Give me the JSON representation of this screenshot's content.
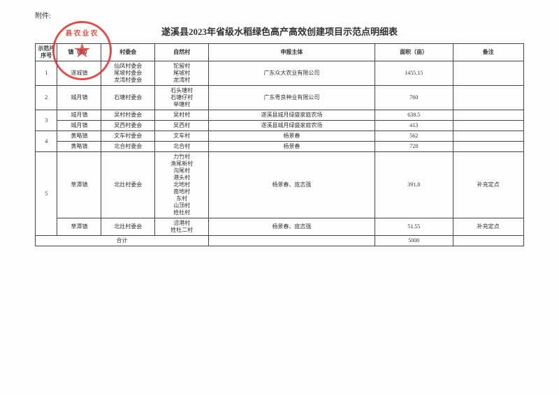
{
  "attachment_label": "附件:",
  "title": "遂溪县2023年省级水稻绿色高产高效创建项目示范点明细表",
  "stamp_text": "县农业农",
  "headers": {
    "index": "示范片\n序号",
    "town": "镇（街）",
    "vcommittee": "村委会",
    "nvillage": "自然村",
    "entity": "申报主体",
    "area": "面积（亩）",
    "remark": "备注"
  },
  "rows": [
    {
      "idx": "1",
      "rowspan_idx": 1,
      "town": "遂城镇",
      "vc": "仙凤村委会\n尾坡村委会\n龙湾村委会",
      "nv": "铊留村\n尾坡村\n龙湾村",
      "entity": "广东众大农业有限公司",
      "area": "1455.15",
      "remark": ""
    },
    {
      "idx": "2",
      "rowspan_idx": 1,
      "town": "城月镇",
      "vc": "石塘村委会",
      "nv": "石头塘村\n石塘仔村\n举塘村",
      "entity": "广东粤良种业有限公司",
      "area": "760",
      "remark": ""
    },
    {
      "idx": "3",
      "rowspan_idx": 2,
      "town": "城月镇",
      "vc": "吴村村委会",
      "nv": "吴村村",
      "entity": "遂溪县城月绿盛家庭农场",
      "area": "638.5",
      "remark": ""
    },
    {
      "idx": "",
      "rowspan_idx": 0,
      "town": "城月镇",
      "vc": "吴西村委会",
      "nv": "吴西村",
      "entity": "遂溪县城月绿盛家庭农场",
      "area": "413",
      "remark": ""
    },
    {
      "idx": "4",
      "rowspan_idx": 2,
      "town": "黄略镇",
      "vc": "文车村委会",
      "nv": "文车村",
      "entity": "杨景春",
      "area": "562",
      "remark": ""
    },
    {
      "idx": "",
      "rowspan_idx": 0,
      "town": "黄略镇",
      "vc": "北合村委会",
      "nv": "北合村",
      "entity": "杨景春",
      "area": "728",
      "remark": ""
    },
    {
      "idx": "5",
      "rowspan_idx": 2,
      "town": "草潭镇",
      "vc": "北灶村委会",
      "nv": "力竹村\n渔尾新村\n沟尾村\n港头村\n北地村\n南地村\n东村\n山顶村\n姓杜村",
      "entity": "杨景春、庞志强",
      "area": "391.8",
      "remark": "补充定点"
    },
    {
      "idx": "",
      "rowspan_idx": 0,
      "town": "草潭镇",
      "vc": "北灶村委会",
      "nv": "涪港村\n姓杜二村",
      "entity": "杨景春、庞志强",
      "area": "51.55",
      "remark": "补充定点"
    }
  ],
  "total": {
    "label": "合计",
    "value": "5000"
  },
  "style": {
    "border_color": "#444444",
    "stamp_color": "#d23a3a",
    "background": "#fdfdfb"
  }
}
